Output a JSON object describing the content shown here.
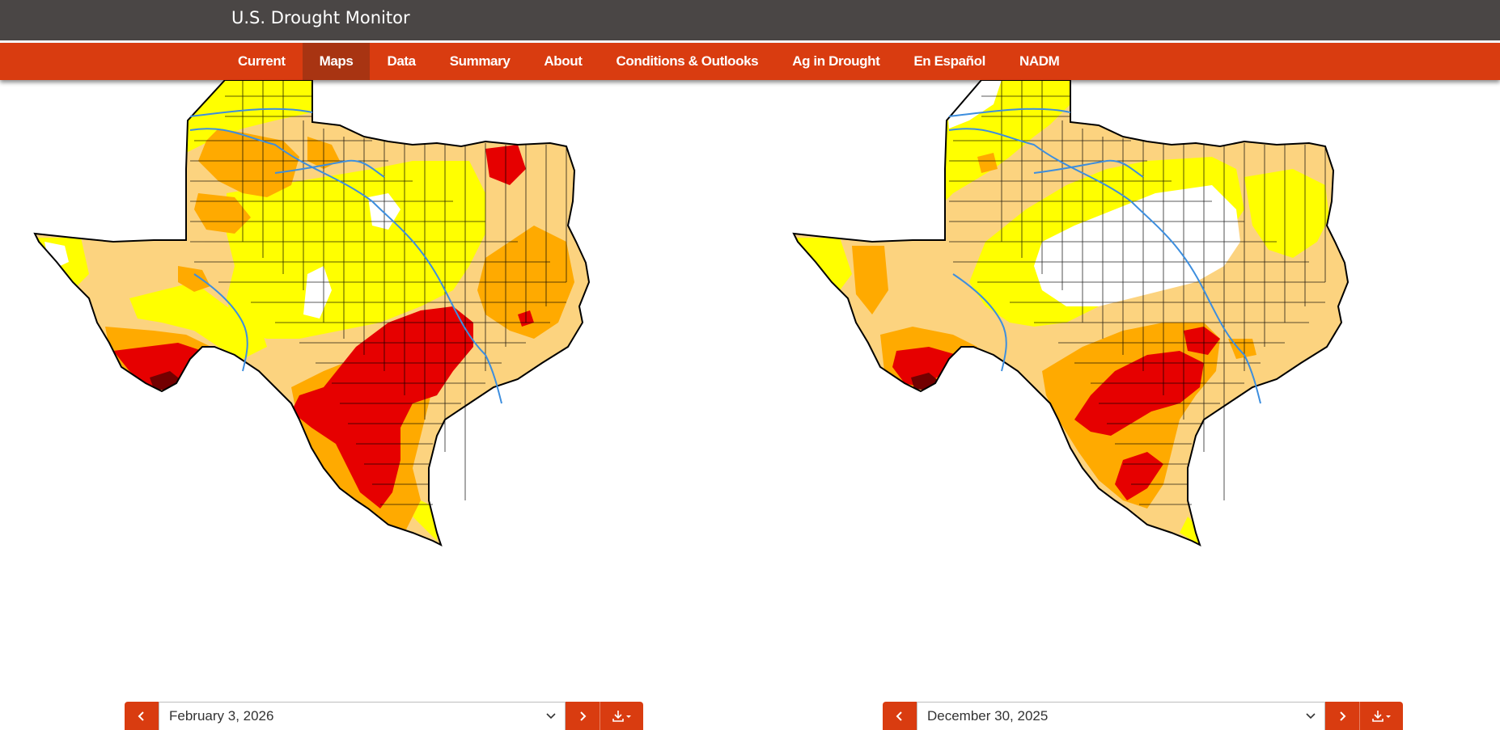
{
  "header": {
    "title": "U.S. Drought Monitor"
  },
  "nav": {
    "items": [
      "Current",
      "Maps",
      "Data",
      "Summary",
      "About",
      "Conditions & Outlooks",
      "Ag in Drought",
      "En Español",
      "NADM"
    ],
    "active": "Maps"
  },
  "map_colors": {
    "none": "#ffffff",
    "D0": "#ffff00",
    "D1": "#fcd37f",
    "D2": "#ffaa00",
    "D3": "#e60000",
    "D4": "#730000",
    "rivers": "#3d8ede",
    "borders": "#000000"
  },
  "maps": [
    {
      "region": "Texas",
      "date": "February 3, 2026"
    },
    {
      "region": "Texas",
      "date": "December 30, 2025"
    }
  ],
  "controls": {
    "prev_icon": "chevron-left-icon",
    "next_icon": "chevron-right-icon",
    "dropdown_icon": "chevron-down-icon",
    "download_icon": "download-icon"
  }
}
